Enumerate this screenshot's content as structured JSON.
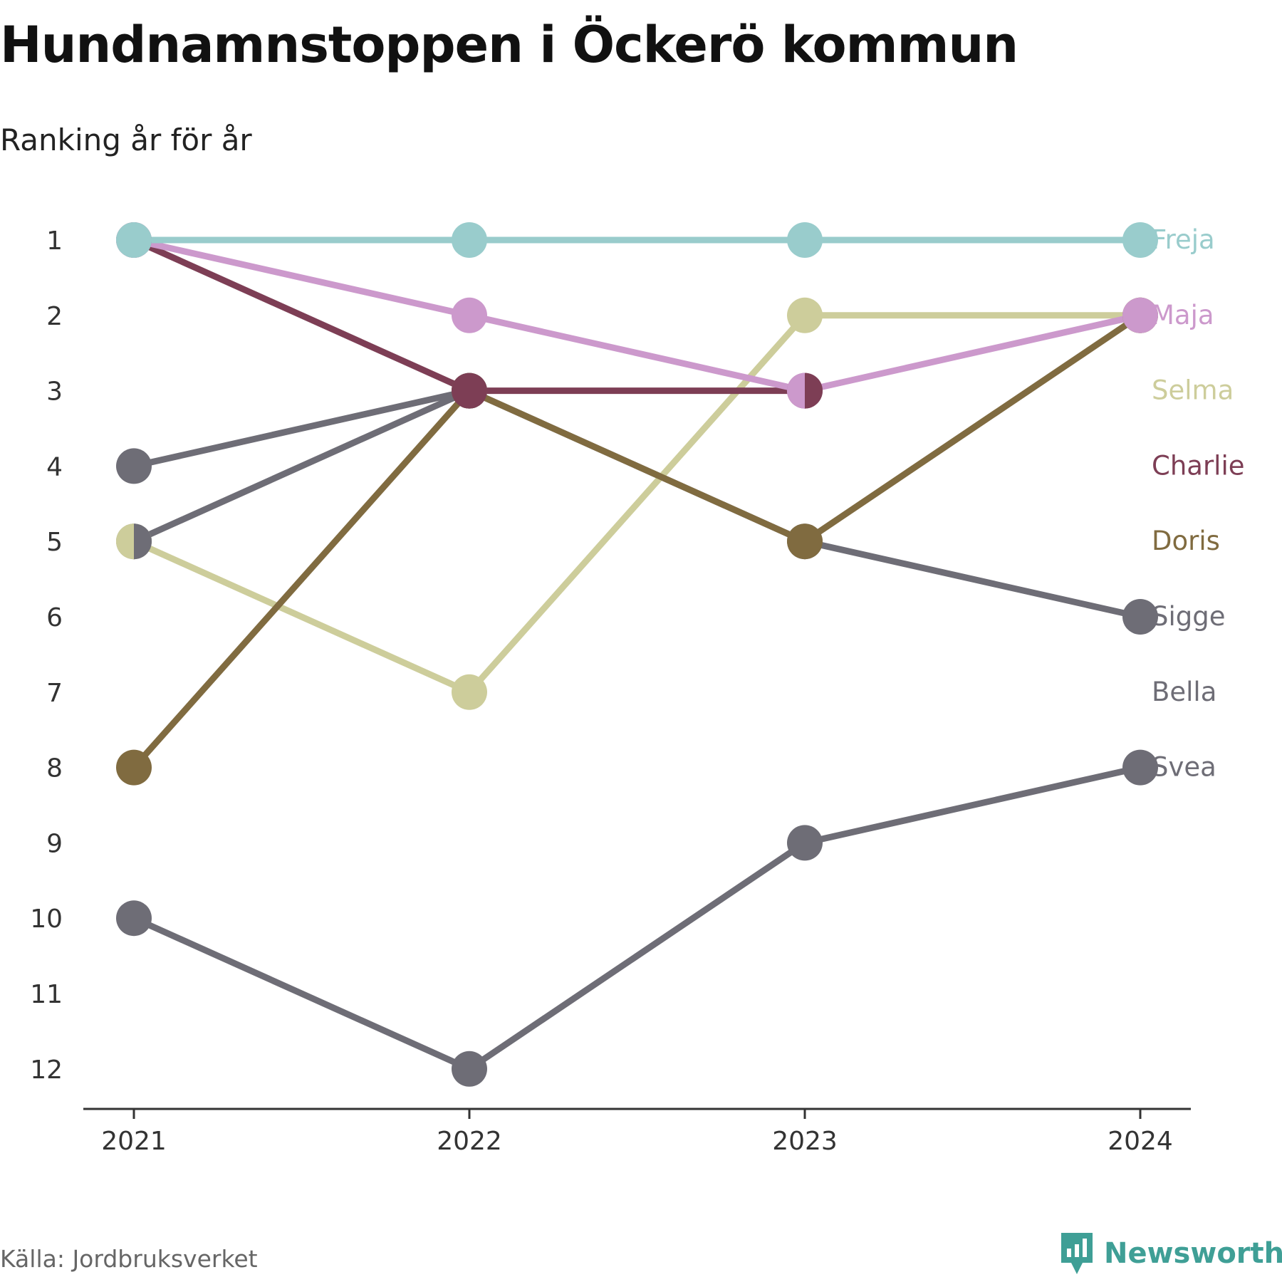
{
  "header": {
    "title": "Hundnamnstoppen i Öckerö kommun",
    "subtitle": "Ranking år för år"
  },
  "footer": {
    "source": "Källa: Jordbruksverket",
    "brand": "Newsworthy",
    "brand_icon": "newsworthy-logo-icon",
    "brand_color": "#3f9f96"
  },
  "chart_data": {
    "type": "line",
    "title": "Hundnamnstoppen i Öckerö kommun",
    "subtitle": "Ranking år för år",
    "x": [
      "2021",
      "2022",
      "2023",
      "2024"
    ],
    "y_ticks": [
      1,
      2,
      3,
      4,
      5,
      6,
      7,
      8,
      9,
      10,
      11,
      12
    ],
    "ylim": [
      1,
      12
    ],
    "y_inverted": true,
    "grid": false,
    "legend": "direct labels at right end of lines",
    "series": [
      {
        "name": "Svea",
        "color": "#6e6d76",
        "values": [
          10,
          12,
          9,
          8
        ]
      },
      {
        "name": "Bella",
        "color": "#6e6d76",
        "values": [
          4,
          3,
          null,
          null
        ]
      },
      {
        "name": "Sigge",
        "color": "#6e6d76",
        "values": [
          5,
          3,
          5,
          6
        ]
      },
      {
        "name": "Selma",
        "color": "#cdcd9b",
        "values": [
          5,
          7,
          2,
          2
        ]
      },
      {
        "name": "Doris",
        "color": "#806b40",
        "values": [
          8,
          3,
          5,
          2
        ]
      },
      {
        "name": "Charlie",
        "color": "#7d3e55",
        "values": [
          1,
          3,
          3,
          null
        ]
      },
      {
        "name": "Maja",
        "color": "#cc99cc",
        "values": [
          1,
          2,
          3,
          2
        ]
      },
      {
        "name": "Freja",
        "color": "#99cccc",
        "values": [
          1,
          1,
          1,
          1
        ]
      }
    ],
    "labels": [
      {
        "name": "Freja",
        "color": "#99cccc"
      },
      {
        "name": "Maja",
        "color": "#cc99cc"
      },
      {
        "name": "Selma",
        "color": "#cdcd9b"
      },
      {
        "name": "Charlie",
        "color": "#7d3e55"
      },
      {
        "name": "Doris",
        "color": "#806b40"
      },
      {
        "name": "Sigge",
        "color": "#6e6d76"
      },
      {
        "name": "Bella",
        "color": "#6e6d76"
      },
      {
        "name": "Svea",
        "color": "#6e6d76"
      }
    ]
  }
}
